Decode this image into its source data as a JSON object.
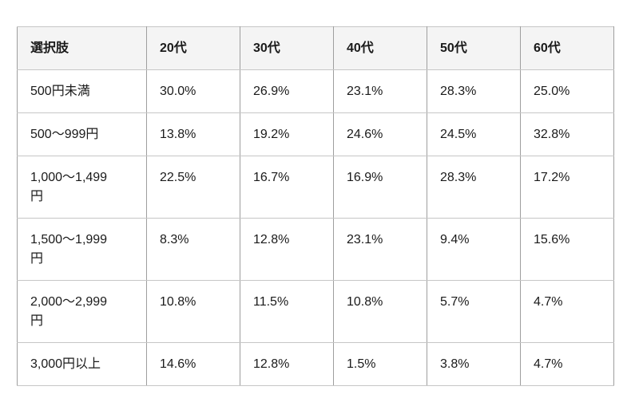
{
  "chart_data": {
    "type": "table",
    "title": "",
    "columns": [
      "選択肢",
      "20代",
      "30代",
      "40代",
      "50代",
      "60代"
    ],
    "rows": [
      {
        "label": "500円未満",
        "values": [
          "30.0%",
          "26.9%",
          "23.1%",
          "28.3%",
          "25.0%"
        ]
      },
      {
        "label": "500〜999円",
        "values": [
          "13.8%",
          "19.2%",
          "24.6%",
          "24.5%",
          "32.8%"
        ]
      },
      {
        "label": "1,000〜1,499円",
        "values": [
          "22.5%",
          "16.7%",
          "16.9%",
          "28.3%",
          "17.2%"
        ]
      },
      {
        "label": "1,500〜1,999円",
        "values": [
          "8.3%",
          "12.8%",
          "23.1%",
          "9.4%",
          "15.6%"
        ]
      },
      {
        "label": "2,000〜2,999円",
        "values": [
          "10.8%",
          "11.5%",
          "10.8%",
          "5.7%",
          "4.7%"
        ]
      },
      {
        "label": "3,000円以上",
        "values": [
          "14.6%",
          "12.8%",
          "1.5%",
          "3.8%",
          "4.7%"
        ]
      }
    ],
    "layout": {
      "legend": "none",
      "grid": "table-borders",
      "header_row": true
    }
  },
  "colors": {
    "page_background": "#ffffff",
    "header_background": "#f4f4f4",
    "cell_background": "#ffffff",
    "border_vertical": "#9e9e9e",
    "border_horizontal": "#c6c6c6",
    "text": "#1a1a1a"
  }
}
